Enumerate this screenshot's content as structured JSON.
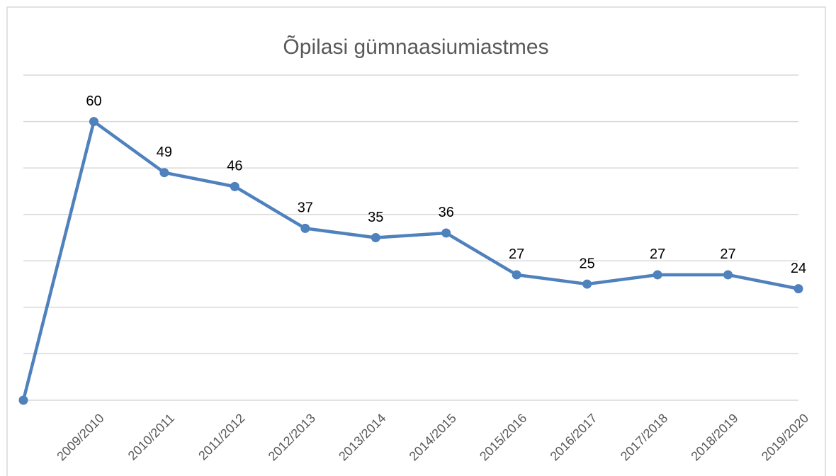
{
  "chart_data": {
    "type": "line",
    "title": "Õpilasi gümnaasiumiastmes",
    "categories": [
      null,
      "2009/2010",
      "2010/2011",
      "2011/2012",
      "2012/2013",
      "2013/2014",
      "2014/2015",
      "2015/2016",
      "2016/2017",
      "2017/2018",
      "2018/2019",
      "2019/2020"
    ],
    "series": [
      {
        "name": "Õpilasi",
        "color": "#4f81bd",
        "values": [
          0,
          60,
          49,
          46,
          37,
          35,
          36,
          27,
          25,
          27,
          27,
          24
        ],
        "value_labels": [
          null,
          "60",
          "49",
          "46",
          "37",
          "35",
          "36",
          "27",
          "25",
          "27",
          "27",
          "24"
        ]
      }
    ],
    "ylim": [
      0,
      70
    ],
    "yticks": [
      0,
      10,
      20,
      30,
      40,
      50,
      60,
      70
    ],
    "grid": true
  }
}
